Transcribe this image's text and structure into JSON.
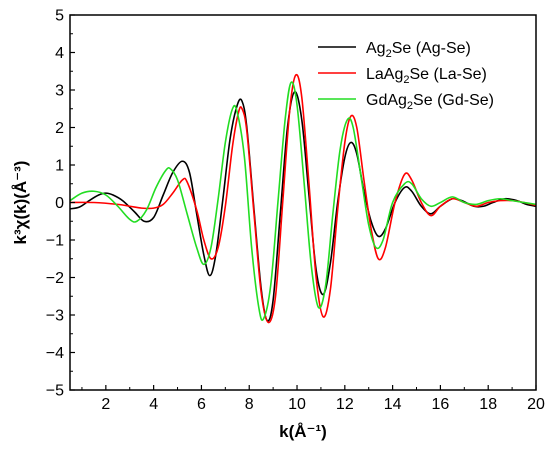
{
  "chart_data": {
    "type": "line",
    "xlabel": "k(Å⁻¹)",
    "ylabel": "k³χ(k)(Å⁻³)",
    "xlim": [
      0.5,
      20
    ],
    "ylim": [
      -5,
      5
    ],
    "x_ticks": [
      2,
      4,
      6,
      8,
      10,
      12,
      14,
      16,
      18,
      20
    ],
    "y_ticks": [
      -5,
      -4,
      -3,
      -2,
      -1,
      0,
      1,
      2,
      3,
      4,
      5
    ],
    "grid": false,
    "legend_position": "top-right",
    "series": [
      {
        "name": "Ag2Se (Ag-Se)",
        "label_parts": [
          "Ag",
          "2",
          "Se (Ag-Se)"
        ],
        "color": "#000000",
        "points": [
          [
            0.5,
            -0.17
          ],
          [
            0.9,
            -0.12
          ],
          [
            1.3,
            0.05
          ],
          [
            1.7,
            0.2
          ],
          [
            2.0,
            0.25
          ],
          [
            2.3,
            0.2
          ],
          [
            2.7,
            0.05
          ],
          [
            3.2,
            -0.25
          ],
          [
            3.6,
            -0.5
          ],
          [
            4.0,
            -0.4
          ],
          [
            4.4,
            0.2
          ],
          [
            4.8,
            0.8
          ],
          [
            5.2,
            1.1
          ],
          [
            5.5,
            0.8
          ],
          [
            5.8,
            -0.3
          ],
          [
            6.1,
            -1.4
          ],
          [
            6.35,
            -1.95
          ],
          [
            6.6,
            -1.4
          ],
          [
            6.9,
            0.1
          ],
          [
            7.2,
            1.7
          ],
          [
            7.5,
            2.6
          ],
          [
            7.7,
            2.7
          ],
          [
            7.9,
            2.0
          ],
          [
            8.2,
            -0.2
          ],
          [
            8.5,
            -2.3
          ],
          [
            8.75,
            -3.15
          ],
          [
            9.0,
            -2.6
          ],
          [
            9.3,
            -0.3
          ],
          [
            9.6,
            2.0
          ],
          [
            9.9,
            2.95
          ],
          [
            10.2,
            2.2
          ],
          [
            10.5,
            0.2
          ],
          [
            10.8,
            -1.8
          ],
          [
            11.1,
            -2.45
          ],
          [
            11.4,
            -1.6
          ],
          [
            11.7,
            0.0
          ],
          [
            12.0,
            1.2
          ],
          [
            12.25,
            1.6
          ],
          [
            12.5,
            1.3
          ],
          [
            12.8,
            0.3
          ],
          [
            13.1,
            -0.5
          ],
          [
            13.4,
            -0.9
          ],
          [
            13.7,
            -0.7
          ],
          [
            14.1,
            0.0
          ],
          [
            14.5,
            0.4
          ],
          [
            14.8,
            0.3
          ],
          [
            15.2,
            -0.1
          ],
          [
            15.6,
            -0.3
          ],
          [
            16.0,
            -0.1
          ],
          [
            16.5,
            0.1
          ],
          [
            16.9,
            0.05
          ],
          [
            17.4,
            -0.1
          ],
          [
            17.8,
            -0.1
          ],
          [
            18.2,
            0.0
          ],
          [
            18.7,
            0.1
          ],
          [
            19.2,
            0.05
          ],
          [
            19.6,
            -0.05
          ],
          [
            20.0,
            -0.1
          ]
        ]
      },
      {
        "name": "LaAg2Se (La-Se)",
        "label_parts": [
          "LaAg",
          "2",
          "Se (La-Se)"
        ],
        "color": "#ff0000",
        "points": [
          [
            0.5,
            0.0
          ],
          [
            1.5,
            0.0
          ],
          [
            2.5,
            -0.05
          ],
          [
            3.0,
            -0.1
          ],
          [
            3.5,
            -0.15
          ],
          [
            4.0,
            -0.15
          ],
          [
            4.4,
            -0.05
          ],
          [
            4.8,
            0.25
          ],
          [
            5.2,
            0.6
          ],
          [
            5.4,
            0.55
          ],
          [
            5.8,
            -0.2
          ],
          [
            6.1,
            -1.0
          ],
          [
            6.4,
            -1.5
          ],
          [
            6.7,
            -1.2
          ],
          [
            7.0,
            -0.1
          ],
          [
            7.3,
            1.5
          ],
          [
            7.55,
            2.4
          ],
          [
            7.7,
            2.5
          ],
          [
            7.9,
            1.9
          ],
          [
            8.2,
            -0.3
          ],
          [
            8.5,
            -2.4
          ],
          [
            8.8,
            -3.2
          ],
          [
            9.1,
            -2.5
          ],
          [
            9.4,
            0.0
          ],
          [
            9.7,
            2.5
          ],
          [
            9.95,
            3.4
          ],
          [
            10.2,
            2.8
          ],
          [
            10.5,
            0.5
          ],
          [
            10.8,
            -2.0
          ],
          [
            11.1,
            -3.05
          ],
          [
            11.4,
            -2.3
          ],
          [
            11.7,
            -0.2
          ],
          [
            12.0,
            1.6
          ],
          [
            12.25,
            2.3
          ],
          [
            12.5,
            2.0
          ],
          [
            12.8,
            0.6
          ],
          [
            13.1,
            -0.7
          ],
          [
            13.4,
            -1.5
          ],
          [
            13.7,
            -1.2
          ],
          [
            14.1,
            0.0
          ],
          [
            14.5,
            0.75
          ],
          [
            14.8,
            0.6
          ],
          [
            15.2,
            0.0
          ],
          [
            15.6,
            -0.35
          ],
          [
            16.0,
            -0.1
          ],
          [
            16.5,
            0.1
          ],
          [
            17.0,
            0.0
          ],
          [
            17.5,
            -0.1
          ],
          [
            18.0,
            0.0
          ],
          [
            18.5,
            0.05
          ],
          [
            19.0,
            0.05
          ],
          [
            19.5,
            0.0
          ],
          [
            20.0,
            -0.08
          ]
        ]
      },
      {
        "name": "GdAg2Se (Gd-Se)",
        "label_parts": [
          "GdAg",
          "2",
          "Se (Gd-Se)"
        ],
        "color": "#22dd22",
        "points": [
          [
            0.5,
            0.05
          ],
          [
            1.0,
            0.25
          ],
          [
            1.5,
            0.3
          ],
          [
            2.0,
            0.2
          ],
          [
            2.5,
            -0.1
          ],
          [
            3.0,
            -0.45
          ],
          [
            3.3,
            -0.5
          ],
          [
            3.7,
            -0.2
          ],
          [
            4.1,
            0.4
          ],
          [
            4.5,
            0.85
          ],
          [
            4.7,
            0.9
          ],
          [
            5.0,
            0.6
          ],
          [
            5.4,
            -0.3
          ],
          [
            5.8,
            -1.2
          ],
          [
            6.1,
            -1.65
          ],
          [
            6.4,
            -1.2
          ],
          [
            6.7,
            0.1
          ],
          [
            7.0,
            1.6
          ],
          [
            7.3,
            2.5
          ],
          [
            7.5,
            2.4
          ],
          [
            7.8,
            1.2
          ],
          [
            8.1,
            -1.2
          ],
          [
            8.4,
            -2.8
          ],
          [
            8.6,
            -3.1
          ],
          [
            8.9,
            -2.2
          ],
          [
            9.2,
            0.0
          ],
          [
            9.5,
            2.2
          ],
          [
            9.75,
            3.2
          ],
          [
            10.0,
            2.6
          ],
          [
            10.3,
            0.5
          ],
          [
            10.6,
            -1.7
          ],
          [
            10.9,
            -2.8
          ],
          [
            11.2,
            -2.2
          ],
          [
            11.5,
            -0.3
          ],
          [
            11.8,
            1.4
          ],
          [
            12.1,
            2.2
          ],
          [
            12.35,
            2.0
          ],
          [
            12.7,
            0.6
          ],
          [
            13.0,
            -0.6
          ],
          [
            13.3,
            -1.2
          ],
          [
            13.6,
            -1.0
          ],
          [
            14.0,
            0.0
          ],
          [
            14.5,
            0.5
          ],
          [
            14.8,
            0.5
          ],
          [
            15.2,
            0.1
          ],
          [
            15.6,
            -0.1
          ],
          [
            16.0,
            0.0
          ],
          [
            16.5,
            0.15
          ],
          [
            17.0,
            0.0
          ],
          [
            17.5,
            -0.05
          ],
          [
            18.0,
            0.05
          ],
          [
            18.5,
            0.1
          ],
          [
            19.0,
            0.05
          ],
          [
            19.5,
            0.0
          ],
          [
            20.0,
            -0.05
          ]
        ]
      }
    ]
  }
}
